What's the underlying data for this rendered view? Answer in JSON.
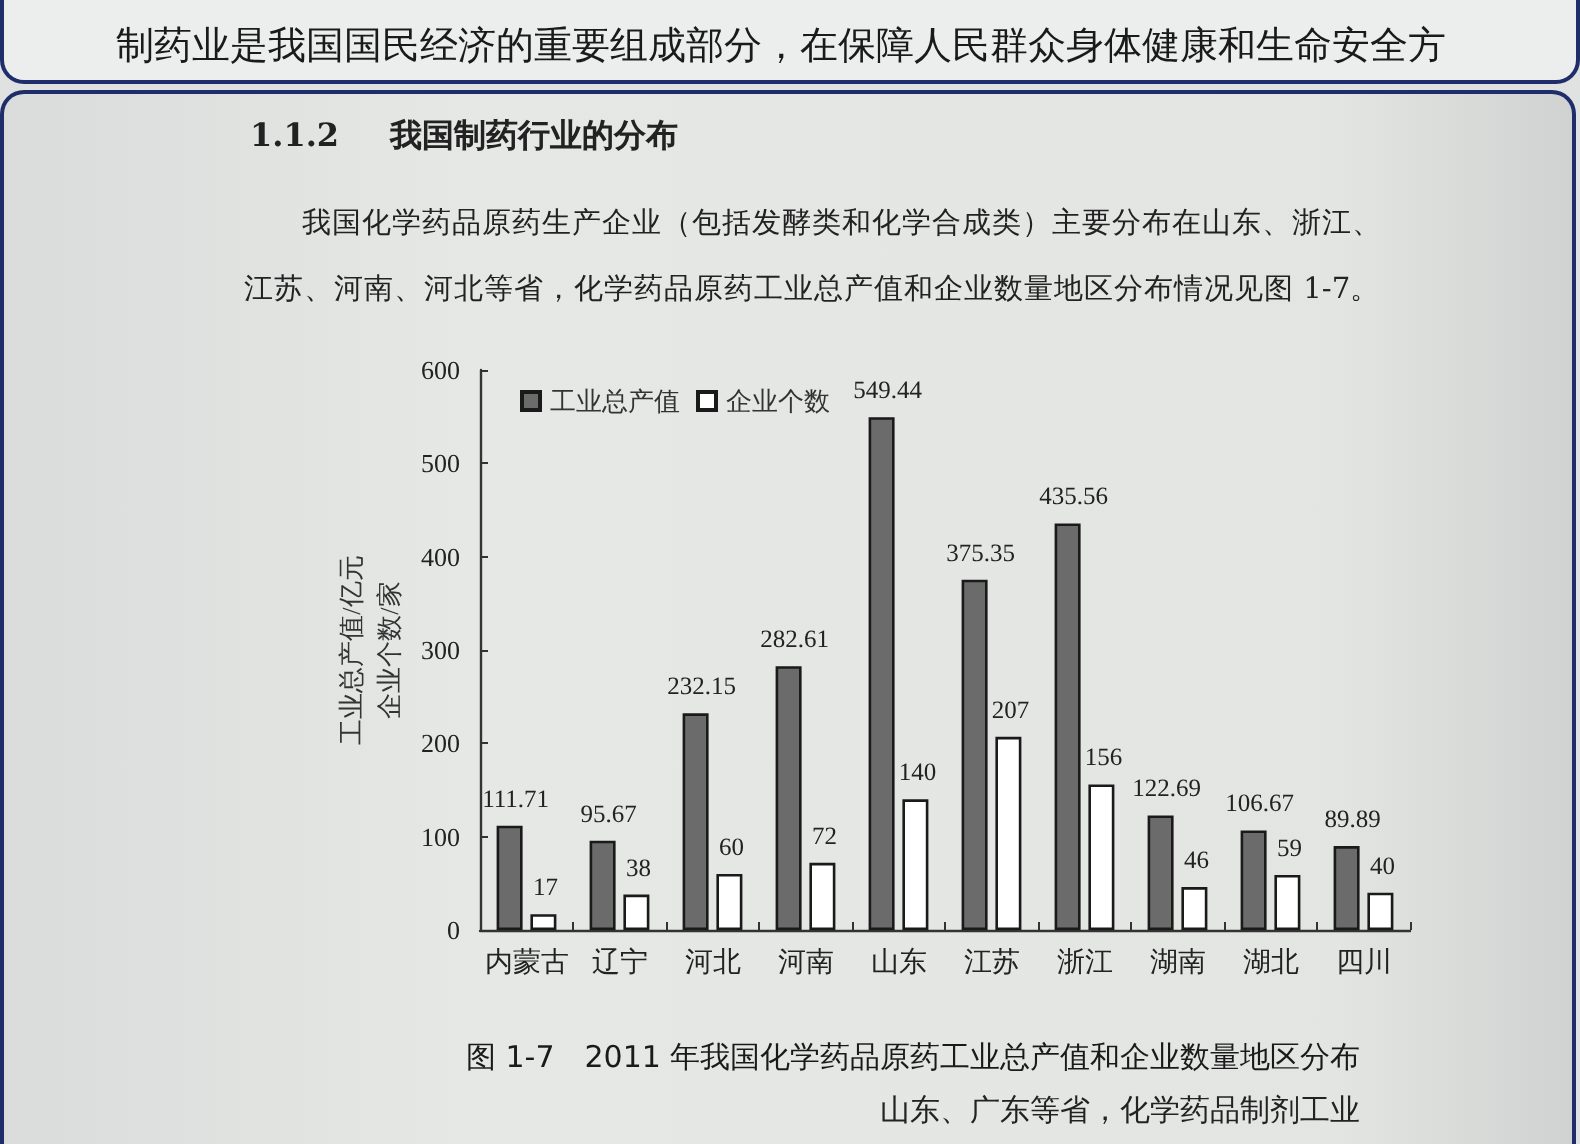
{
  "chart_data": {
    "type": "bar",
    "title": "图 1-7　2011 年我国化学药品原药工业总产值和企业数量地区分布",
    "ylabel": "工业总产值/亿元企业个数/家",
    "annotations": [
      "制药业是我国国民经济的重要组成部分，在保障人民群众身体健康和生命安全方",
      "1.1.2 我国制药行业的分布",
      "我国化学药品原药生产企业（包括发酵类和化学合成类）主要分布在山东、浙江、江苏、河南、河北等省，化学药品原药工业总产值和企业数量地区分布情况见图 1-7。",
      "山东、广东等省，化学药品制剂工业"
    ],
    "categories": [
      "内蒙古",
      "辽宁",
      "河北",
      "河南",
      "山东",
      "江苏",
      "浙江",
      "湖南",
      "湖北",
      "四川"
    ],
    "series": [
      {
        "name": "工业总产值",
        "color": "#6b6b6b",
        "values": [
          111.71,
          95.67,
          232.15,
          282.61,
          549.44,
          375.35,
          435.56,
          122.69,
          106.67,
          89.89
        ]
      },
      {
        "name": "企业个数",
        "color": "#ffffff",
        "values": [
          17,
          38,
          60,
          72,
          140,
          207,
          156,
          46,
          59,
          40
        ]
      }
    ],
    "ylim": [
      0,
      600
    ],
    "yticks": [
      0,
      100,
      200,
      300,
      400,
      500,
      600
    ],
    "data_labels": true,
    "legend": "top left"
  }
}
